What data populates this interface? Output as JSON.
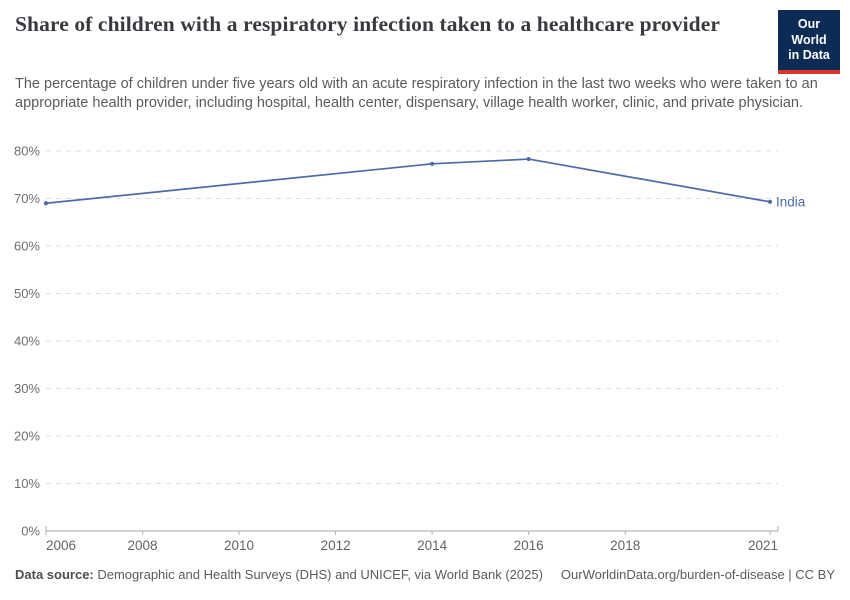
{
  "header": {
    "title": "Share of children with a respiratory infection taken to a healthcare provider",
    "logo": {
      "line1": "Our World",
      "line2": "in Data"
    }
  },
  "subtitle": "The percentage of children under five years old with an acute respiratory infection in the last two weeks who were taken to an appropriate health provider, including hospital, health center, dispensary, village health worker, clinic, and private physician.",
  "chart_data": {
    "type": "line",
    "title": "Share of children with a respiratory infection taken to a healthcare provider",
    "xlabel": "",
    "ylabel": "",
    "xlim": [
      2006,
      2021
    ],
    "ylim": [
      0,
      80
    ],
    "x_ticks": [
      2006,
      2008,
      2010,
      2012,
      2014,
      2016,
      2018,
      2021
    ],
    "y_ticks": [
      0,
      10,
      20,
      30,
      40,
      50,
      60,
      70,
      80
    ],
    "y_tick_suffix": "%",
    "grid": "horizontal-dashed",
    "legend_position": "end-of-line-label",
    "series": [
      {
        "name": "India",
        "color": "#4c6ba9",
        "x": [
          2006,
          2014,
          2016,
          2021
        ],
        "values": [
          69,
          77.3,
          78.3,
          69.3
        ]
      }
    ]
  },
  "footer": {
    "datasource_label": "Data source:",
    "datasource_text": " Demographic and Health Surveys (DHS) and UNICEF, via World Bank (2025)",
    "link_text": "OurWorldinData.org/burden-of-disease | CC BY"
  },
  "colors": {
    "line": "#4c6ba9",
    "grid": "#dcdcdc",
    "axis": "#a9a9a9",
    "tick": "#b5b5b5",
    "title": "#383a40",
    "muted_text": "#5b5b5b",
    "logo_bg": "#0d2c55",
    "logo_stripe": "#d8352a"
  }
}
